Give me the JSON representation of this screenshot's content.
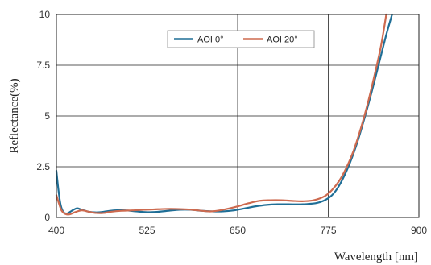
{
  "chart_data": {
    "type": "line",
    "title": "",
    "xlabel": "Wavelength [nm]",
    "ylabel": "Reflectance(%)",
    "xlim": [
      400,
      900
    ],
    "ylim": [
      0,
      10
    ],
    "xticks": [
      "400",
      "525",
      "650",
      "775",
      "900"
    ],
    "yticks": [
      "0",
      "2.5",
      "5",
      "7.5",
      "10"
    ],
    "grid": true,
    "legend_position": "top-center",
    "series": [
      {
        "name": "AOI 0°",
        "color": "#1f6e96",
        "points": [
          [
            400,
            2.3
          ],
          [
            403,
            1.3
          ],
          [
            406,
            0.6
          ],
          [
            410,
            0.25
          ],
          [
            415,
            0.2
          ],
          [
            420,
            0.3
          ],
          [
            428,
            0.45
          ],
          [
            435,
            0.38
          ],
          [
            445,
            0.28
          ],
          [
            455,
            0.25
          ],
          [
            465,
            0.28
          ],
          [
            480,
            0.35
          ],
          [
            495,
            0.35
          ],
          [
            510,
            0.3
          ],
          [
            525,
            0.26
          ],
          [
            540,
            0.28
          ],
          [
            555,
            0.33
          ],
          [
            570,
            0.38
          ],
          [
            585,
            0.38
          ],
          [
            600,
            0.33
          ],
          [
            615,
            0.3
          ],
          [
            630,
            0.3
          ],
          [
            645,
            0.35
          ],
          [
            660,
            0.45
          ],
          [
            675,
            0.55
          ],
          [
            690,
            0.62
          ],
          [
            705,
            0.65
          ],
          [
            720,
            0.65
          ],
          [
            740,
            0.65
          ],
          [
            760,
            0.72
          ],
          [
            775,
            0.95
          ],
          [
            785,
            1.3
          ],
          [
            795,
            1.9
          ],
          [
            805,
            2.7
          ],
          [
            815,
            3.7
          ],
          [
            825,
            4.9
          ],
          [
            835,
            6.2
          ],
          [
            845,
            7.6
          ],
          [
            855,
            9.0
          ],
          [
            863,
            10.0
          ]
        ]
      },
      {
        "name": "AOI 20°",
        "color": "#cd6a4f",
        "points": [
          [
            400,
            1.1
          ],
          [
            403,
            0.75
          ],
          [
            407,
            0.35
          ],
          [
            412,
            0.18
          ],
          [
            418,
            0.15
          ],
          [
            425,
            0.25
          ],
          [
            435,
            0.35
          ],
          [
            445,
            0.28
          ],
          [
            455,
            0.22
          ],
          [
            465,
            0.22
          ],
          [
            475,
            0.28
          ],
          [
            490,
            0.33
          ],
          [
            505,
            0.35
          ],
          [
            520,
            0.38
          ],
          [
            535,
            0.4
          ],
          [
            550,
            0.42
          ],
          [
            565,
            0.42
          ],
          [
            580,
            0.4
          ],
          [
            595,
            0.35
          ],
          [
            610,
            0.3
          ],
          [
            620,
            0.32
          ],
          [
            635,
            0.42
          ],
          [
            650,
            0.55
          ],
          [
            665,
            0.7
          ],
          [
            680,
            0.82
          ],
          [
            695,
            0.85
          ],
          [
            710,
            0.85
          ],
          [
            725,
            0.82
          ],
          [
            740,
            0.8
          ],
          [
            755,
            0.85
          ],
          [
            770,
            1.05
          ],
          [
            780,
            1.35
          ],
          [
            790,
            1.8
          ],
          [
            800,
            2.45
          ],
          [
            810,
            3.3
          ],
          [
            820,
            4.4
          ],
          [
            830,
            5.7
          ],
          [
            840,
            7.2
          ],
          [
            848,
            8.5
          ],
          [
            855,
            10.0
          ]
        ]
      }
    ]
  }
}
